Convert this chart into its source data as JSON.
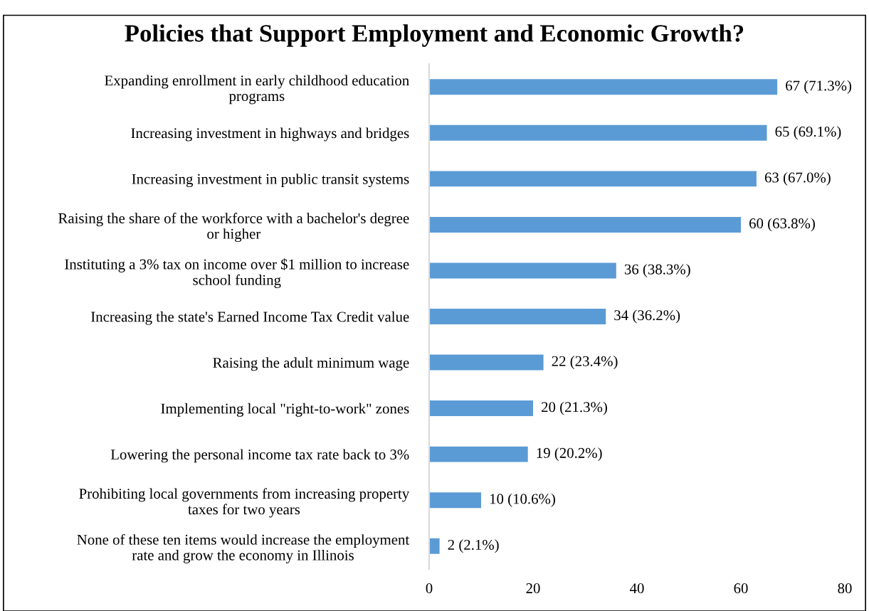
{
  "chart_data": {
    "type": "bar",
    "orientation": "horizontal",
    "title": "Policies that Support Employment and Economic Growth?",
    "categories": [
      "Expanding enrollment in early childhood education\nprograms",
      "Increasing investment in highways and bridges",
      "Increasing investment in public transit systems",
      "Raising the share of the workforce with a bachelor's degree\nor higher",
      "Instituting a 3% tax on income over $1 million to increase\nschool funding",
      "Increasing the state's Earned Income Tax Credit value",
      "Raising the adult minimum wage",
      "Implementing local \"right-to-work\" zones",
      "Lowering the personal income tax rate back to 3%",
      "Prohibiting local governments from increasing property\ntaxes for two years",
      "None of these ten items would increase the employment\nrate and grow the economy in Illinois"
    ],
    "values": [
      67,
      65,
      63,
      60,
      36,
      34,
      22,
      20,
      19,
      10,
      2
    ],
    "value_labels": [
      "67 (71.3%)",
      "65 (69.1%)",
      "63 (67.0%)",
      "60 (63.8%)",
      "36 (38.3%)",
      "34 (36.2%)",
      "22 (23.4%)",
      "20 (21.3%)",
      "19 (20.2%)",
      "10 (10.6%)",
      "2 (2.1%)"
    ],
    "color": "#5b9bd5",
    "xlim": [
      0,
      80
    ],
    "xticks": [
      0,
      20,
      40,
      60,
      80
    ],
    "grid": false,
    "legend": false
  }
}
